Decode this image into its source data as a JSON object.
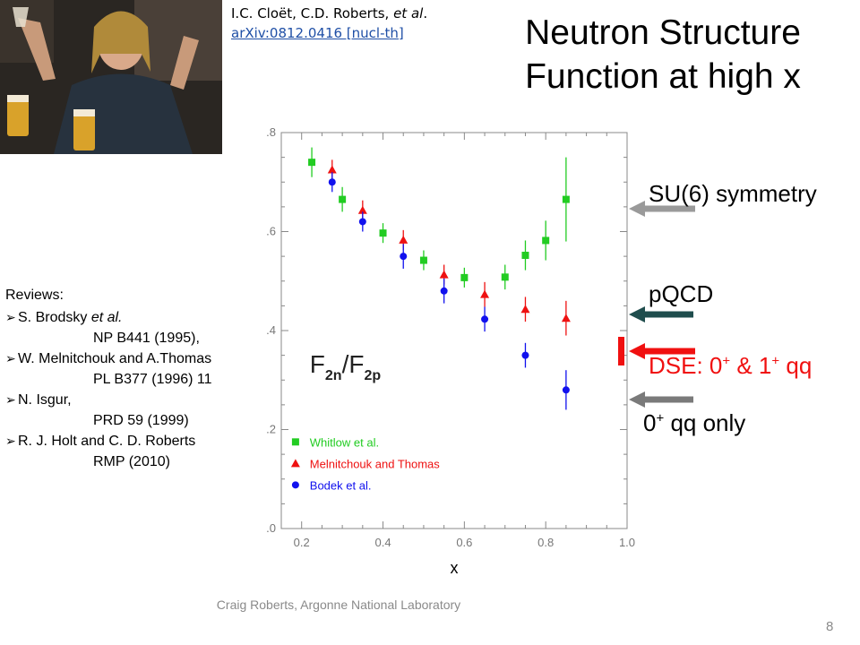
{
  "slide": {
    "title_line1": "Neutron Structure",
    "title_line2": "Function at high x",
    "citation_authors": "I.C. Cloët, C.D. Roberts, ",
    "citation_etal": "et al",
    "citation_dot": ".",
    "citation_link": "arXiv:0812.0416 [nucl-th]",
    "footer": "Craig Roberts, Argonne National Laboratory",
    "page_number": "8"
  },
  "reviews": {
    "heading": "Reviews:",
    "items": [
      {
        "author": "S. Brodsky ",
        "etal": "et al.",
        "ref": "NP B441 (1995),"
      },
      {
        "author": "W. Melnitchouk and A.Thomas",
        "etal": "",
        "ref": "PL B377 (1996) 11"
      },
      {
        "author": "N. Isgur,",
        "etal": "",
        "ref": "PRD 59 (1999)"
      },
      {
        "author": "R. J. Holt and C. D. Roberts",
        "etal": "",
        "ref": "RMP (2010)"
      }
    ]
  },
  "annotations": {
    "su6": "SU(6) symmetry",
    "pqcd": "pQCD",
    "dse_a": "DSE: 0",
    "dse_sup1": "+",
    "dse_b": " & 1",
    "dse_sup2": "+",
    "dse_c": " qq",
    "zero_a": "0",
    "zero_sup": "+",
    "zero_b": " qq only",
    "colors": {
      "su6": "#9a9a9a",
      "pqcd": "#1f4d4d",
      "dse": "#f01010",
      "zero": "#7a7a7a"
    }
  },
  "chart_data": {
    "type": "scatter",
    "title": "",
    "xlabel": "x",
    "ylabel": "",
    "plot_label": "F2n/F2p",
    "xlim": [
      0.15,
      1.0
    ],
    "ylim": [
      0.0,
      0.8
    ],
    "xticks": [
      0.2,
      0.4,
      0.6,
      0.8,
      1.0
    ],
    "xtick_labels": [
      "0.2",
      "0.4",
      "0.6",
      "0.8",
      "1.0"
    ],
    "yticks": [
      0.0,
      0.2,
      0.4,
      0.6,
      0.8
    ],
    "ytick_labels": [
      ".0",
      ".2",
      ".4",
      ".6",
      ".8"
    ],
    "legend_position": "lower-left",
    "series": [
      {
        "name": "Whitlow  et  al.",
        "color": "#22cc22",
        "marker": "square",
        "points": [
          [
            0.225,
            0.74,
            0.03
          ],
          [
            0.3,
            0.665,
            0.025
          ],
          [
            0.4,
            0.597,
            0.02
          ],
          [
            0.5,
            0.542,
            0.02
          ],
          [
            0.6,
            0.507,
            0.02
          ],
          [
            0.7,
            0.508,
            0.025
          ],
          [
            0.75,
            0.552,
            0.03
          ],
          [
            0.8,
            0.582,
            0.04
          ],
          [
            0.85,
            0.665,
            0.085
          ]
        ]
      },
      {
        "name": "Melnitchouk  and  Thomas",
        "color": "#ee1111",
        "marker": "triangle",
        "points": [
          [
            0.275,
            0.725,
            0.02
          ],
          [
            0.35,
            0.643,
            0.02
          ],
          [
            0.45,
            0.583,
            0.02
          ],
          [
            0.55,
            0.513,
            0.02
          ],
          [
            0.65,
            0.473,
            0.025
          ],
          [
            0.75,
            0.443,
            0.025
          ],
          [
            0.85,
            0.425,
            0.035
          ]
        ]
      },
      {
        "name": "Bodek  et  al.",
        "color": "#1111ee",
        "marker": "circle",
        "points": [
          [
            0.275,
            0.7,
            0.02
          ],
          [
            0.35,
            0.62,
            0.02
          ],
          [
            0.45,
            0.55,
            0.025
          ],
          [
            0.55,
            0.48,
            0.025
          ],
          [
            0.65,
            0.423,
            0.025
          ],
          [
            0.75,
            0.35,
            0.025
          ],
          [
            0.85,
            0.28,
            0.04
          ]
        ]
      }
    ]
  }
}
